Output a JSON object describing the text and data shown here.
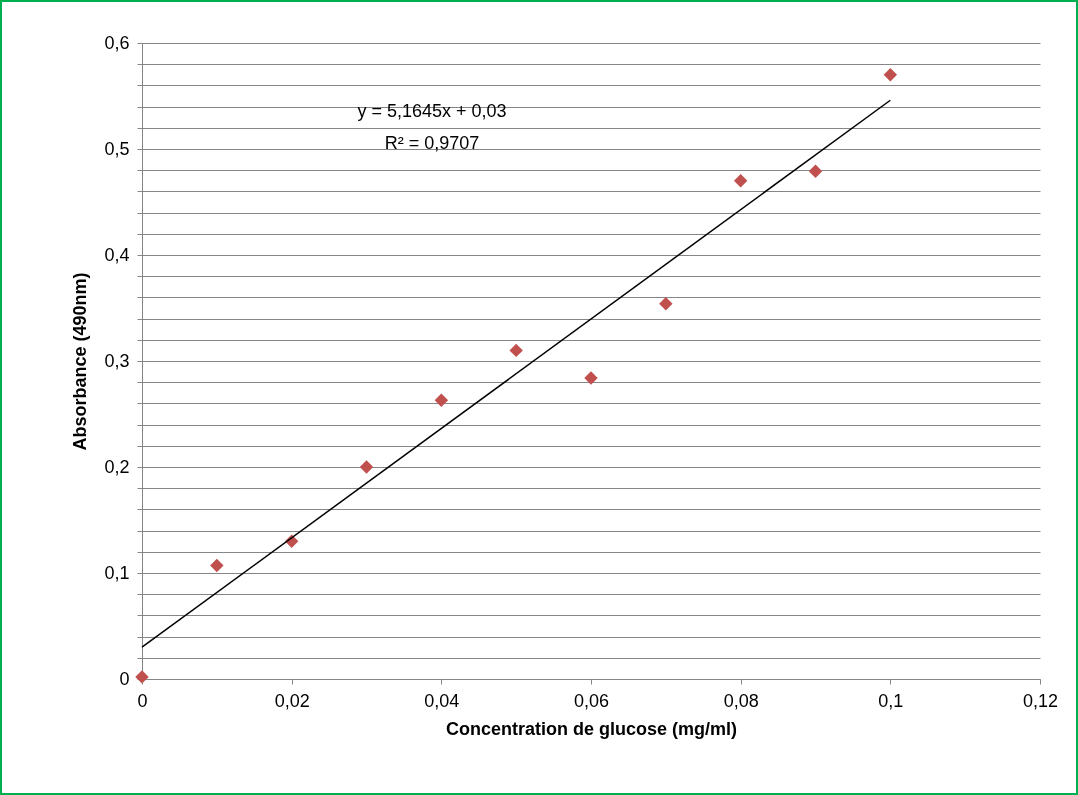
{
  "chart_data": {
    "type": "scatter",
    "xlabel": "Concentration de glucose (mg/ml)",
    "ylabel": "Absorbance (490nm)",
    "annotations": [
      "y = 5,1645x + 0,03",
      "R² = 0,9707"
    ],
    "series": [
      {
        "color": "#c0504d",
        "marker": "diamond",
        "x": [
          0,
          0.01,
          0.02,
          0.03,
          0.04,
          0.05,
          0.06,
          0.07,
          0.08,
          0.09,
          0.1
        ],
        "values": [
          0.002,
          0.107,
          0.13,
          0.2,
          0.263,
          0.31,
          0.284,
          0.354,
          0.47,
          0.479,
          0.57
        ]
      },
      {
        "type": "line",
        "color": "#000000",
        "marker": "none",
        "line_style": "solid",
        "x": [
          0,
          0.1
        ],
        "values": [
          0.03,
          0.546
        ]
      }
    ],
    "xlim": [
      0,
      0.12
    ],
    "xticks": [
      0,
      {
        "value": 0.02,
        "label": "0,02"
      },
      {
        "value": 0.04,
        "label": "0,04"
      },
      {
        "value": 0.06,
        "label": "0,06"
      },
      {
        "value": 0.08,
        "label": "0,08"
      },
      {
        "value": 0.1,
        "label": "0,1"
      },
      {
        "value": 0.12,
        "label": "0,12"
      }
    ],
    "ylim": [
      0,
      0.6
    ],
    "yticks": [
      0,
      {
        "value": 0.02,
        "label": null
      },
      {
        "value": 0.04,
        "label": null
      },
      {
        "value": 0.06,
        "label": null
      },
      {
        "value": 0.08,
        "label": null
      },
      {
        "value": 0.1,
        "label": "0,1"
      },
      {
        "value": 0.12,
        "label": null
      },
      {
        "value": 0.14,
        "label": null
      },
      {
        "value": 0.16,
        "label": null
      },
      {
        "value": 0.18,
        "label": null
      },
      {
        "value": 0.2,
        "label": "0,2"
      },
      {
        "value": 0.22,
        "label": null
      },
      {
        "value": 0.24,
        "label": null
      },
      {
        "value": 0.26,
        "label": null
      },
      {
        "value": 0.28,
        "label": null
      },
      {
        "value": 0.3,
        "label": "0,3"
      },
      {
        "value": 0.32,
        "label": null
      },
      {
        "value": 0.34,
        "label": null
      },
      {
        "value": 0.36,
        "label": null
      },
      {
        "value": 0.38,
        "label": null
      },
      {
        "value": 0.4,
        "label": "0,4"
      },
      {
        "value": 0.42,
        "label": null
      },
      {
        "value": 0.44,
        "label": null
      },
      {
        "value": 0.46,
        "label": null
      },
      {
        "value": 0.48,
        "label": null
      },
      {
        "value": 0.5,
        "label": "0,5"
      },
      {
        "value": 0.52,
        "label": null
      },
      {
        "value": 0.54,
        "label": null
      },
      {
        "value": 0.56,
        "label": null
      },
      {
        "value": 0.58,
        "label": null
      },
      {
        "value": 0.6,
        "label": "0,6"
      }
    ],
    "grid": "y"
  }
}
